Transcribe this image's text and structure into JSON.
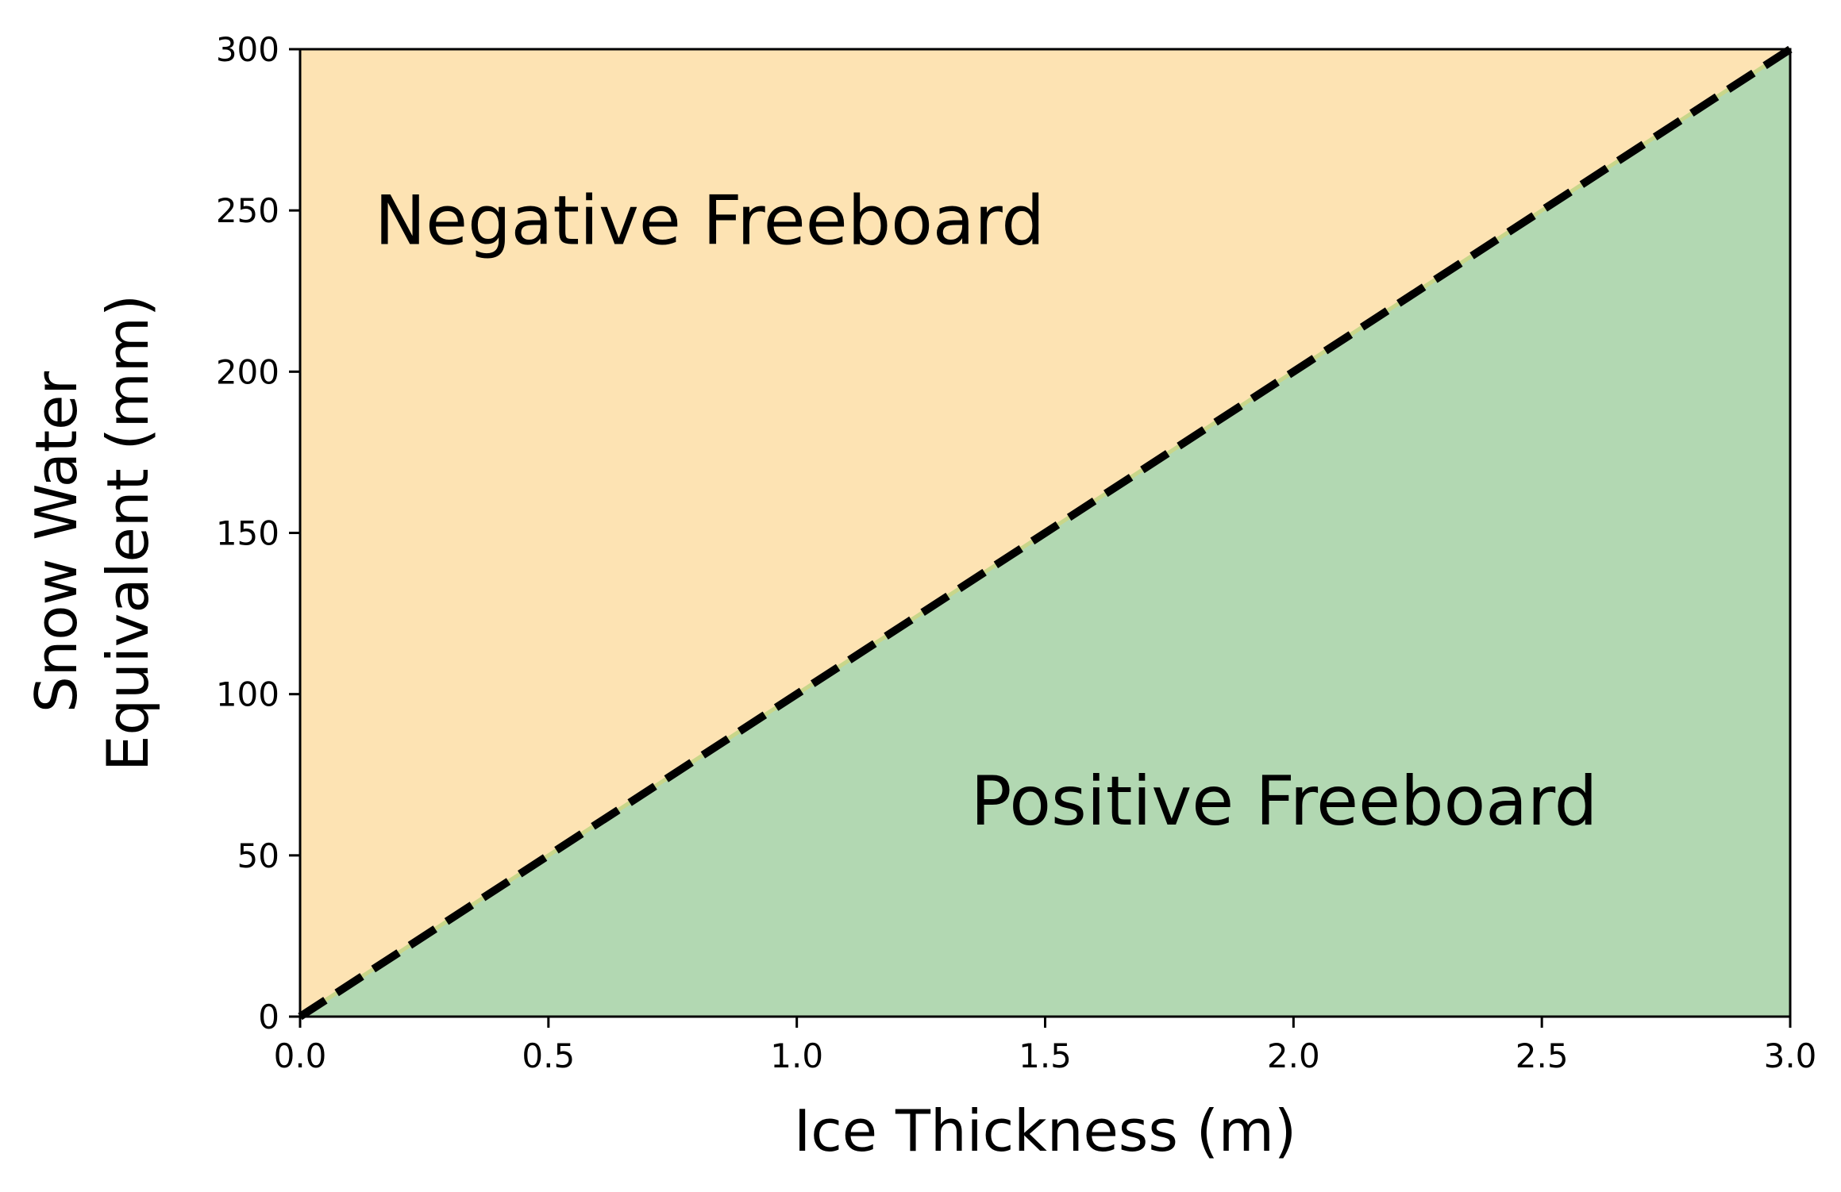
{
  "chart_data": {
    "type": "area",
    "xlabel": "Ice Thickness (m)",
    "ylabel_lines": [
      "Snow Water",
      "Equivalent (mm)"
    ],
    "xlim": [
      0.0,
      3.0
    ],
    "ylim": [
      0,
      300
    ],
    "xticks": [
      {
        "value": 0.0,
        "label": "0.0"
      },
      {
        "value": 0.5,
        "label": "0.5"
      },
      {
        "value": 1.0,
        "label": "1.0"
      },
      {
        "value": 1.5,
        "label": "1.5"
      },
      {
        "value": 2.0,
        "label": "2.0"
      },
      {
        "value": 2.5,
        "label": "2.5"
      },
      {
        "value": 3.0,
        "label": "3.0"
      }
    ],
    "yticks": [
      {
        "value": 0,
        "label": "0"
      },
      {
        "value": 50,
        "label": "50"
      },
      {
        "value": 100,
        "label": "100"
      },
      {
        "value": 150,
        "label": "150"
      },
      {
        "value": 200,
        "label": "200"
      },
      {
        "value": 250,
        "label": "250"
      },
      {
        "value": 300,
        "label": "300"
      }
    ],
    "boundary_line": {
      "x": [
        0.0,
        3.0
      ],
      "y": [
        0,
        300
      ],
      "style": "dashed",
      "color": "#000000"
    },
    "regions": [
      {
        "label": "Negative Freeboard",
        "side": "above",
        "color": "#fde3b3",
        "label_x": 0.15,
        "label_y": 247
      },
      {
        "label": "Positive Freeboard",
        "side": "below",
        "color": "#b2d8b2",
        "label_x": 1.35,
        "label_y": 67
      }
    ],
    "grid": false,
    "legend": "none"
  }
}
